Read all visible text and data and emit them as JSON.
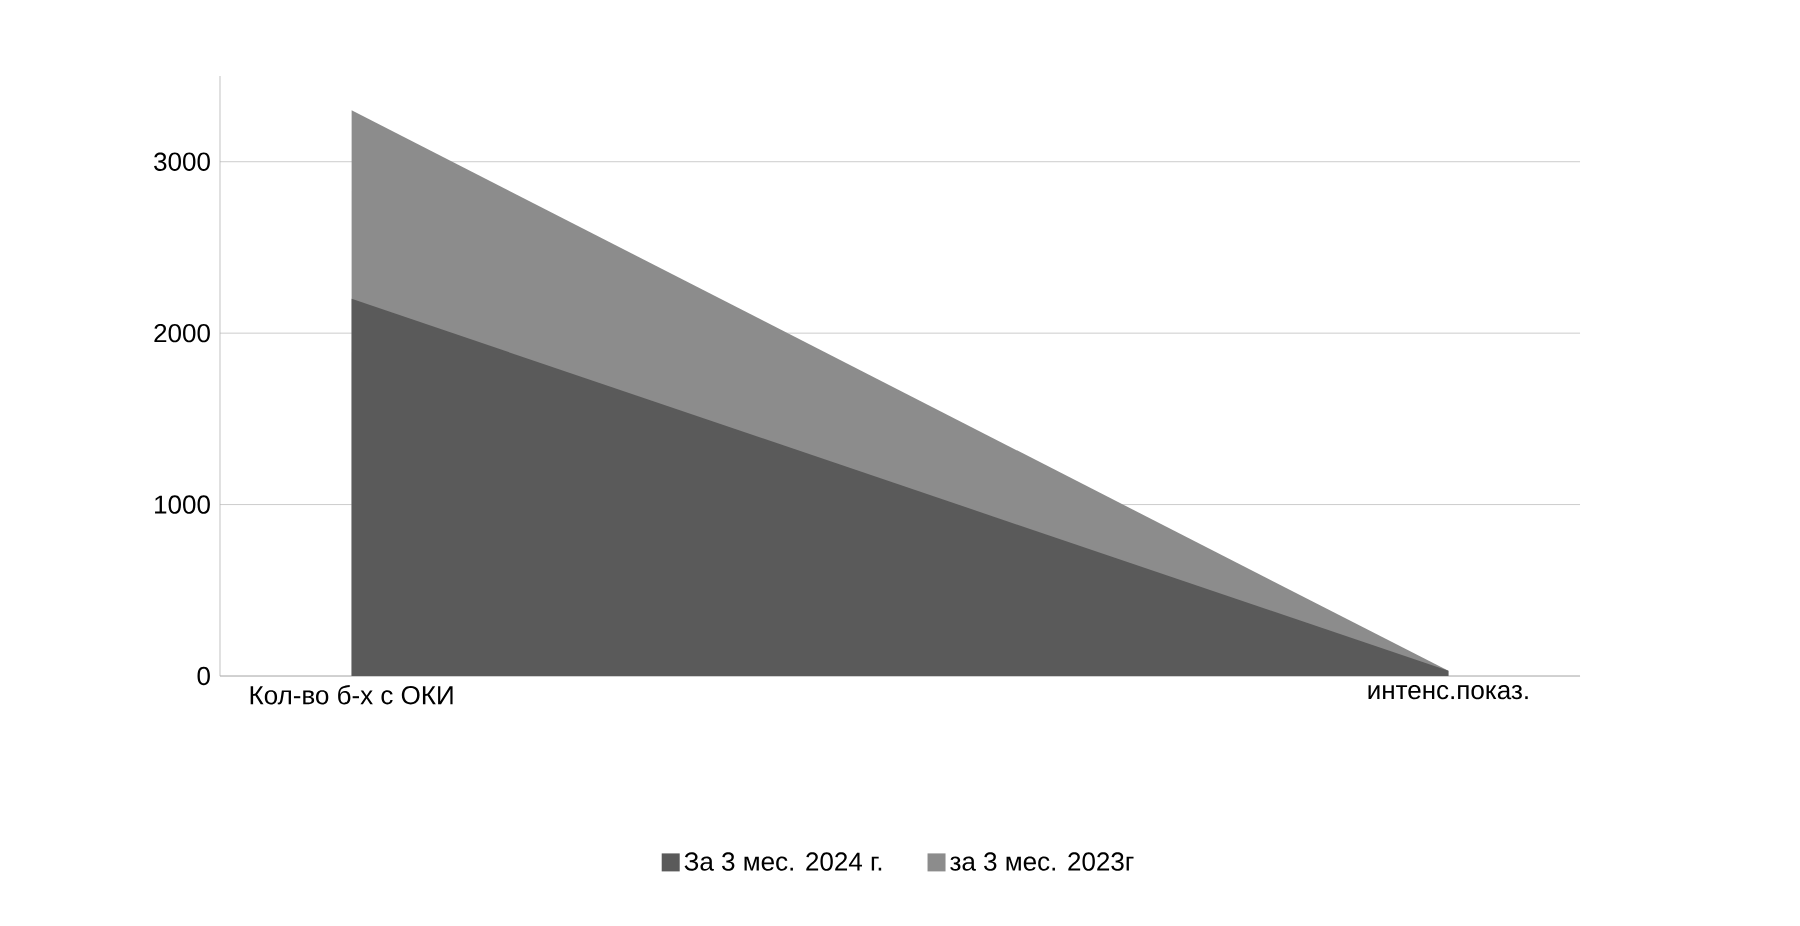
{
  "chart_data": {
    "type": "area",
    "categories": [
      "Кол-во б-х с ОКИ",
      "интенс.показ."
    ],
    "series": [
      {
        "name": "За 3 мес. 2024 г.",
        "color": "#5a5a5a",
        "values": [
          2200,
          30
        ]
      },
      {
        "name": "за 3 мес. 2023г",
        "color": "#8c8c8c",
        "values": [
          3300,
          30
        ]
      }
    ],
    "ylim": [
      0,
      3500
    ],
    "yticks": [
      0,
      1000,
      2000,
      3000
    ],
    "grid": "y",
    "legend": "bottom"
  }
}
